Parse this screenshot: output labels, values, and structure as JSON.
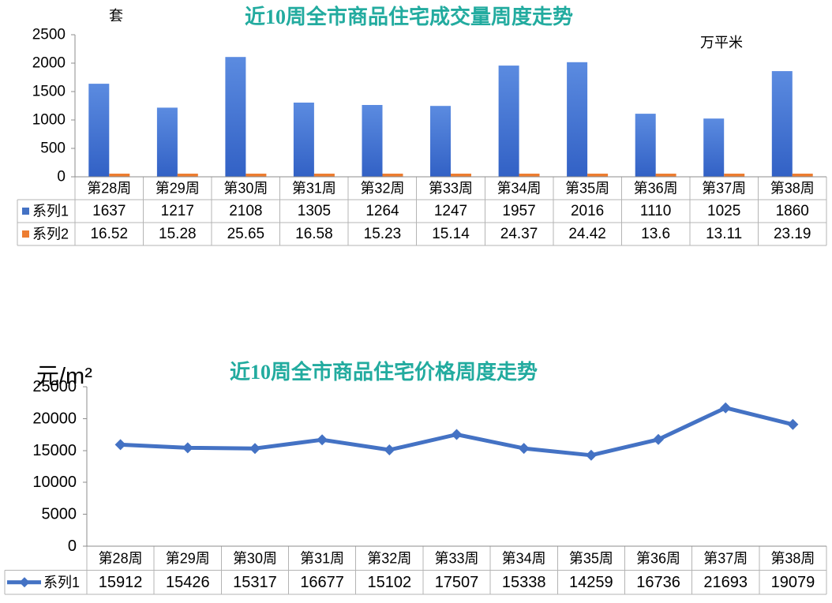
{
  "chart_data": [
    {
      "type": "bar",
      "title": "近10周全市商品住宅成交量周度走势",
      "ylabel": "套",
      "annotation": "万平米",
      "categories": [
        "第28周",
        "第29周",
        "第30周",
        "第31周",
        "第32周",
        "第33周",
        "第34周",
        "第35周",
        "第36周",
        "第37周",
        "第38周"
      ],
      "series": [
        {
          "name": "系列1",
          "color": "#4472c4",
          "values": [
            1637,
            1217,
            2108,
            1305,
            1264,
            1247,
            1957,
            2016,
            1110,
            1025,
            1860
          ]
        },
        {
          "name": "系列2",
          "color": "#ed7d31",
          "values": [
            16.52,
            15.28,
            25.65,
            16.58,
            15.23,
            15.14,
            24.37,
            24.42,
            13.6,
            13.11,
            23.19
          ]
        }
      ],
      "ylim": [
        0,
        2500
      ],
      "yticks": [
        0,
        500,
        1000,
        1500,
        2000,
        2500
      ],
      "grid": false,
      "legend": "data-table"
    },
    {
      "type": "line",
      "title": "近10周全市商品住宅价格周度走势",
      "ylabel": "元/m²",
      "categories": [
        "第28周",
        "第29周",
        "第30周",
        "第31周",
        "第32周",
        "第33周",
        "第34周",
        "第35周",
        "第36周",
        "第37周",
        "第38周"
      ],
      "series": [
        {
          "name": "系列1",
          "color": "#4472c4",
          "marker": "diamond",
          "values": [
            15912,
            15426,
            15317,
            16677,
            15102,
            17507,
            15338,
            14259,
            16736,
            21693,
            19079
          ]
        }
      ],
      "ylim": [
        0,
        25000
      ],
      "yticks": [
        0,
        5000,
        10000,
        15000,
        20000,
        25000
      ],
      "grid": false,
      "legend": "data-table"
    }
  ],
  "colors": {
    "title": "#22ab9f"
  }
}
